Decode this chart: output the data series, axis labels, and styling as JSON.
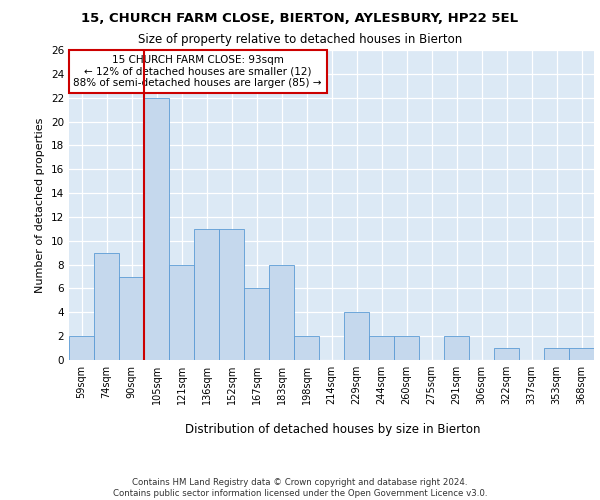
{
  "title1": "15, CHURCH FARM CLOSE, BIERTON, AYLESBURY, HP22 5EL",
  "title2": "Size of property relative to detached houses in Bierton",
  "xlabel": "Distribution of detached houses by size in Bierton",
  "ylabel": "Number of detached properties",
  "categories": [
    "59sqm",
    "74sqm",
    "90sqm",
    "105sqm",
    "121sqm",
    "136sqm",
    "152sqm",
    "167sqm",
    "183sqm",
    "198sqm",
    "214sqm",
    "229sqm",
    "244sqm",
    "260sqm",
    "275sqm",
    "291sqm",
    "306sqm",
    "322sqm",
    "337sqm",
    "353sqm",
    "368sqm"
  ],
  "values": [
    2,
    9,
    7,
    22,
    8,
    11,
    11,
    6,
    8,
    2,
    0,
    4,
    2,
    2,
    0,
    2,
    0,
    1,
    0,
    1,
    1
  ],
  "bar_color": "#c5d8ed",
  "bar_edge_color": "#5b9bd5",
  "background_color": "#dce9f5",
  "vline_color": "#cc0000",
  "annotation_text": "15 CHURCH FARM CLOSE: 93sqm\n← 12% of detached houses are smaller (12)\n88% of semi-detached houses are larger (85) →",
  "annotation_box_color": "#cc0000",
  "footer": "Contains HM Land Registry data © Crown copyright and database right 2024.\nContains public sector information licensed under the Open Government Licence v3.0.",
  "ylim": [
    0,
    26
  ],
  "yticks": [
    0,
    2,
    4,
    6,
    8,
    10,
    12,
    14,
    16,
    18,
    20,
    22,
    24,
    26
  ]
}
